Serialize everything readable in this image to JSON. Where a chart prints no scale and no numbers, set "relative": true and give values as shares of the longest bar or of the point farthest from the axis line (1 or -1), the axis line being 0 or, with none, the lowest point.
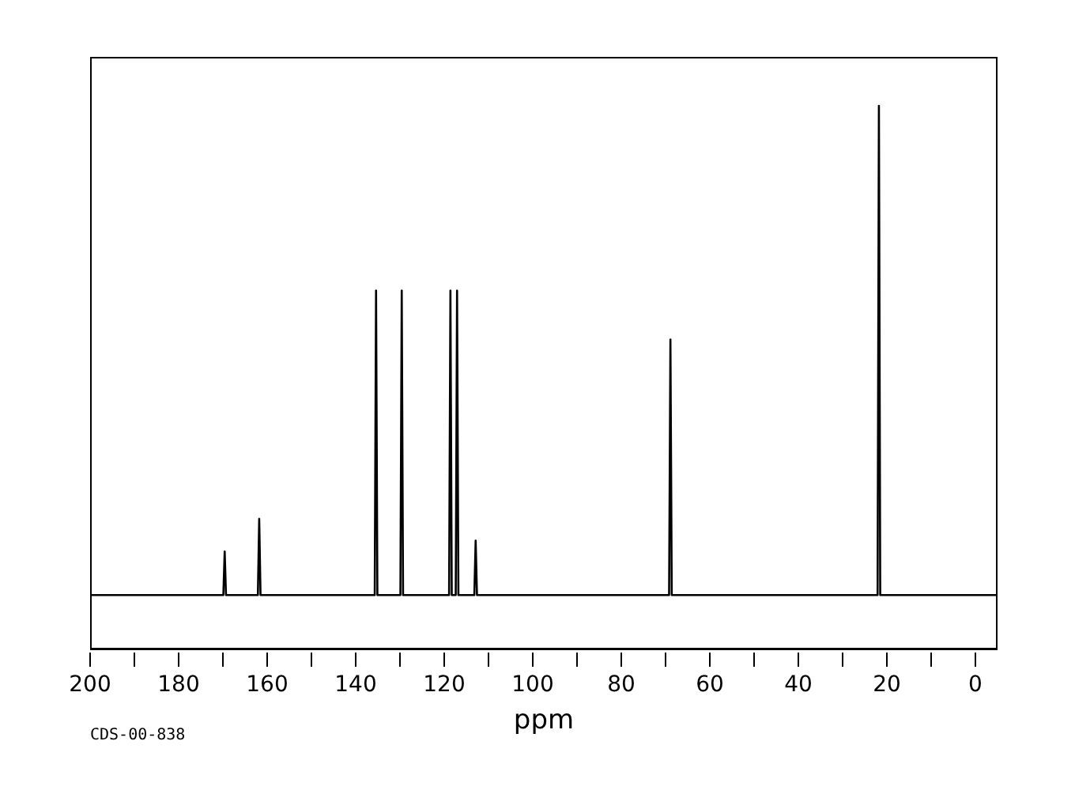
{
  "chart_data": {
    "type": "line",
    "relative": true,
    "xlabel": "ppm",
    "annotations": [
      "CDS-00-838"
    ],
    "marker": "none",
    "line_style": "solid",
    "xlim": [
      200,
      -5
    ],
    "xticks": [
      200,
      {
        "value": 190,
        "label": null
      },
      180,
      {
        "value": 170,
        "label": null
      },
      160,
      {
        "value": 150,
        "label": null
      },
      140,
      {
        "value": 130,
        "label": null
      },
      120,
      {
        "value": 110,
        "label": null
      },
      100,
      {
        "value": 90,
        "label": null
      },
      80,
      {
        "value": 70,
        "label": null
      },
      60,
      {
        "value": 50,
        "label": null
      },
      40,
      {
        "value": 30,
        "label": null
      },
      20,
      {
        "value": 10,
        "label": null
      },
      0
    ],
    "series": [
      {
        "color": "#000000",
        "x": [
          200,
          169.9,
          169.6,
          169.3,
          162.1,
          161.8,
          161.5,
          135.7,
          135.4,
          135.1,
          129.9,
          129.6,
          129.3,
          118.9,
          118.6,
          118.3,
          117.4,
          117.1,
          116.8,
          113.2,
          112.9,
          112.6,
          69.2,
          68.9,
          68.6,
          22.1,
          21.8,
          21.5,
          -5
        ],
        "values": [
          0.1,
          0.1,
          0.18,
          0.1,
          0.1,
          0.24,
          0.1,
          0.1,
          0.66,
          0.1,
          0.1,
          0.66,
          0.1,
          0.1,
          0.66,
          0.1,
          0.1,
          0.66,
          0.1,
          0.1,
          0.2,
          0.1,
          0.1,
          0.57,
          0.1,
          0.1,
          1,
          0.1,
          0.1
        ]
      }
    ]
  }
}
